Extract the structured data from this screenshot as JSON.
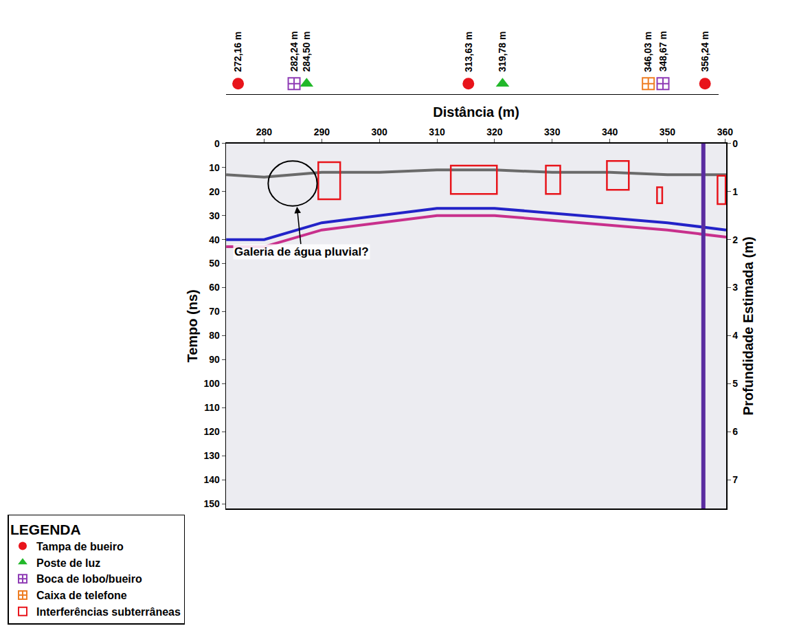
{
  "chart_data": {
    "type": "radargram",
    "xlabel": "Distância (m)",
    "ylabel": "Tempo (ns)",
    "y2label": "Profundidade Estimada (m)",
    "xlim": [
      273.4,
      360.2
    ],
    "xticks": [
      280,
      290,
      300,
      310,
      320,
      330,
      340,
      350,
      360
    ],
    "ylim": [
      152,
      0
    ],
    "yticks": [
      0,
      10,
      20,
      30,
      40,
      50,
      60,
      70,
      80,
      90,
      100,
      110,
      120,
      130,
      140,
      150
    ],
    "y2lim": [
      7.6,
      0
    ],
    "y2ticks": [
      0,
      1,
      2,
      3,
      4,
      5,
      6,
      7
    ],
    "grid": false,
    "legend": "bottom left",
    "legend_title": "LEGENDA",
    "series": [
      {
        "color": "#6a6a6a",
        "x": [
          273.4,
          280,
          290,
          300,
          310,
          320,
          330,
          340,
          350,
          360.2
        ],
        "values": [
          13,
          14,
          12,
          12,
          11,
          11,
          12,
          12,
          13,
          13
        ]
      },
      {
        "color": "#2323c8",
        "x": [
          273.4,
          280,
          290,
          300,
          310,
          320,
          330,
          340,
          350,
          360.2
        ],
        "values": [
          40,
          40,
          33,
          30,
          27,
          27,
          29,
          31,
          33,
          36
        ]
      },
      {
        "color": "#c8308c",
        "x": [
          273.4,
          280,
          290,
          300,
          310,
          320,
          330,
          340,
          350,
          360.2
        ],
        "values": [
          43,
          43,
          36,
          33,
          30,
          30,
          32,
          34,
          36,
          39
        ]
      }
    ],
    "strong_reflection_x": 356.24,
    "strong_reflection_color": "#5a2ca0",
    "strip_xlim": [
      270,
      358.7
    ],
    "marker_kinds": [
      {
        "name": "Tampa de bueiro",
        "color": "#e8141b",
        "marker": "circle"
      },
      {
        "name": "Poste de luz",
        "color": "#22b82a",
        "marker": "triangle"
      },
      {
        "name": "Boca de lobo/bueiro",
        "color": "#8e3bb5",
        "marker": "square-cross"
      },
      {
        "name": "Caixa de telefone",
        "color": "#ee7d22",
        "marker": "square-cross"
      }
    ],
    "markers": [
      {
        "x": 272.16,
        "label": "272,16 m",
        "kind": "Tampa de bueiro"
      },
      {
        "x": 282.24,
        "label": "282,24 m",
        "kind": "Boca de lobo/bueiro"
      },
      {
        "x": 284.5,
        "label": "284,50 m",
        "kind": "Poste de luz"
      },
      {
        "x": 313.63,
        "label": "313,63 m",
        "kind": "Tampa de bueiro"
      },
      {
        "x": 319.78,
        "label": "319,78 m",
        "kind": "Poste de luz"
      },
      {
        "x": 346.03,
        "label": "346,03 m",
        "kind": "Caixa de telefone"
      },
      {
        "x": 348.67,
        "label": "348,67 m",
        "kind": "Boca de lobo/bueiro"
      },
      {
        "x": 356.24,
        "label": "356,24 m",
        "kind": "Tampa de bueiro"
      }
    ],
    "interference_label": "Interferências subterrâneas",
    "interference_color": "#e8141b",
    "interferences": [
      {
        "x0": 289.4,
        "x1": 293.2,
        "y0": 7.8,
        "y1": 23.2
      },
      {
        "x0": 312.4,
        "x1": 320.4,
        "y0": 9.2,
        "y1": 21
      },
      {
        "x0": 328.9,
        "x1": 331.4,
        "y0": 9.2,
        "y1": 21
      },
      {
        "x0": 339.5,
        "x1": 343.3,
        "y0": 7.3,
        "y1": 19.3
      },
      {
        "x0": 348.2,
        "x1": 349.1,
        "y0": 18.2,
        "y1": 24.9
      },
      {
        "x0": 358.7,
        "x1": 360.1,
        "y0": 13.4,
        "y1": 25.2
      }
    ],
    "ellipse": {
      "x0": 280.7,
      "x1": 289.2,
      "y0": 7.3,
      "y1": 26
    },
    "annotation": {
      "text": "Galeria de água pluvial?",
      "x": 286.5,
      "y": 45,
      "arrow_x": 285.7,
      "arrow_y": 26.3
    }
  }
}
